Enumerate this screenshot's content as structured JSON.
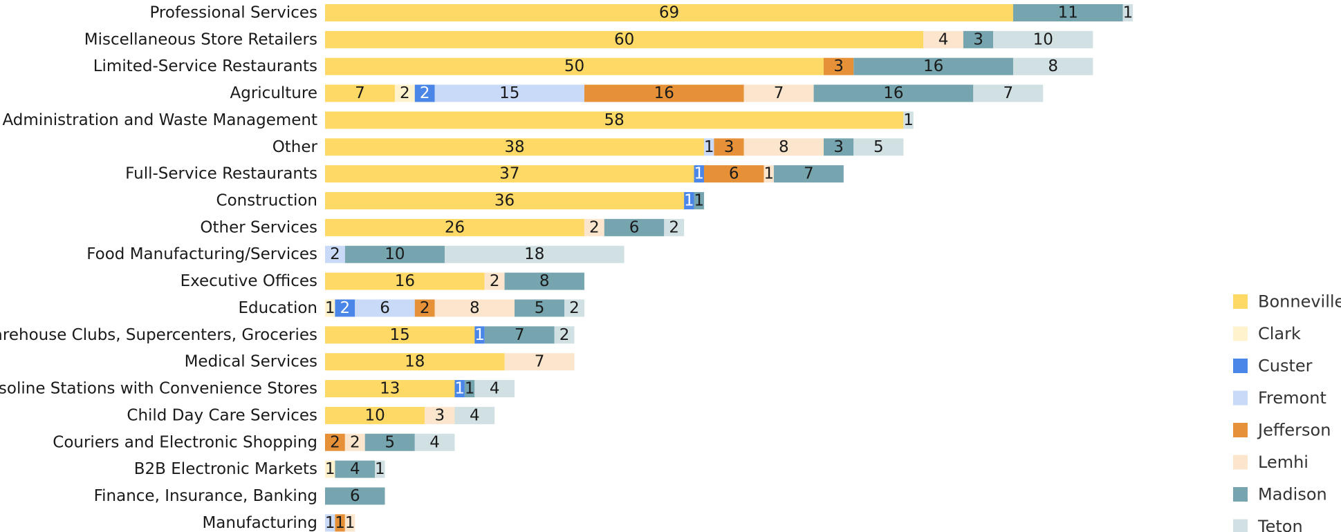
{
  "chart_data": {
    "type": "bar",
    "orientation": "horizontal",
    "stacked": true,
    "title": "",
    "xlabel": "",
    "ylabel": "",
    "grid": false,
    "legend_position": "right",
    "categories": [
      "Professional Services",
      "Miscellaneous Store Retailers",
      "Limited-Service Restaurants",
      "Agriculture",
      "Administration and Waste Management",
      "Other",
      "Full-Service Restaurants",
      "Construction",
      "Other Services",
      "Food Manufacturing/Services",
      "Executive Offices",
      "Education",
      "Warehouse Clubs, Supercenters, Groceries",
      "Medical Services",
      "Gasoline Stations with Convenience Stores",
      "Child Day Care Services",
      "Couriers and Electronic Shopping",
      "B2B Electronic Markets",
      "Finance, Insurance, Banking",
      "Manufacturing"
    ],
    "series": [
      {
        "name": "Bonneville",
        "color": "#FFD966",
        "label_color": "#1a1a1a",
        "values": [
          69,
          60,
          50,
          7,
          58,
          38,
          37,
          36,
          26,
          0,
          16,
          0,
          15,
          18,
          13,
          10,
          0,
          0,
          0,
          0
        ]
      },
      {
        "name": "Clark",
        "color": "#FFF2CC",
        "label_color": "#1a1a1a",
        "values": [
          0,
          0,
          0,
          2,
          0,
          0,
          0,
          0,
          0,
          0,
          0,
          1,
          0,
          0,
          0,
          0,
          0,
          1,
          0,
          0
        ]
      },
      {
        "name": "Custer",
        "color": "#4A86E8",
        "label_color": "#ffffff",
        "values": [
          0,
          0,
          0,
          2,
          0,
          0,
          1,
          1,
          0,
          0,
          0,
          2,
          1,
          0,
          1,
          0,
          0,
          0,
          0,
          0
        ]
      },
      {
        "name": "Fremont",
        "color": "#C9DAF8",
        "label_color": "#1a1a1a",
        "values": [
          0,
          0,
          0,
          15,
          0,
          1,
          0,
          0,
          0,
          2,
          0,
          6,
          0,
          0,
          0,
          0,
          0,
          0,
          0,
          1
        ]
      },
      {
        "name": "Jefferson",
        "color": "#E69138",
        "label_color": "#1a1a1a",
        "values": [
          0,
          0,
          3,
          16,
          0,
          3,
          6,
          0,
          0,
          0,
          0,
          2,
          0,
          0,
          0,
          0,
          2,
          0,
          0,
          1
        ]
      },
      {
        "name": "Lemhi",
        "color": "#FCE5CD",
        "label_color": "#1a1a1a",
        "values": [
          0,
          4,
          0,
          7,
          0,
          8,
          1,
          0,
          2,
          0,
          2,
          8,
          0,
          7,
          0,
          3,
          2,
          0,
          0,
          1
        ]
      },
      {
        "name": "Madison",
        "color": "#76A5AF",
        "label_color": "#1a1a1a",
        "values": [
          11,
          3,
          16,
          16,
          0,
          3,
          7,
          1,
          6,
          10,
          8,
          5,
          7,
          0,
          1,
          0,
          5,
          4,
          6,
          0
        ]
      },
      {
        "name": "Teton",
        "color": "#D0E0E3",
        "label_color": "#1a1a1a",
        "values": [
          1,
          10,
          8,
          7,
          1,
          5,
          0,
          0,
          2,
          18,
          0,
          2,
          2,
          0,
          4,
          4,
          4,
          1,
          0,
          0
        ]
      }
    ]
  }
}
